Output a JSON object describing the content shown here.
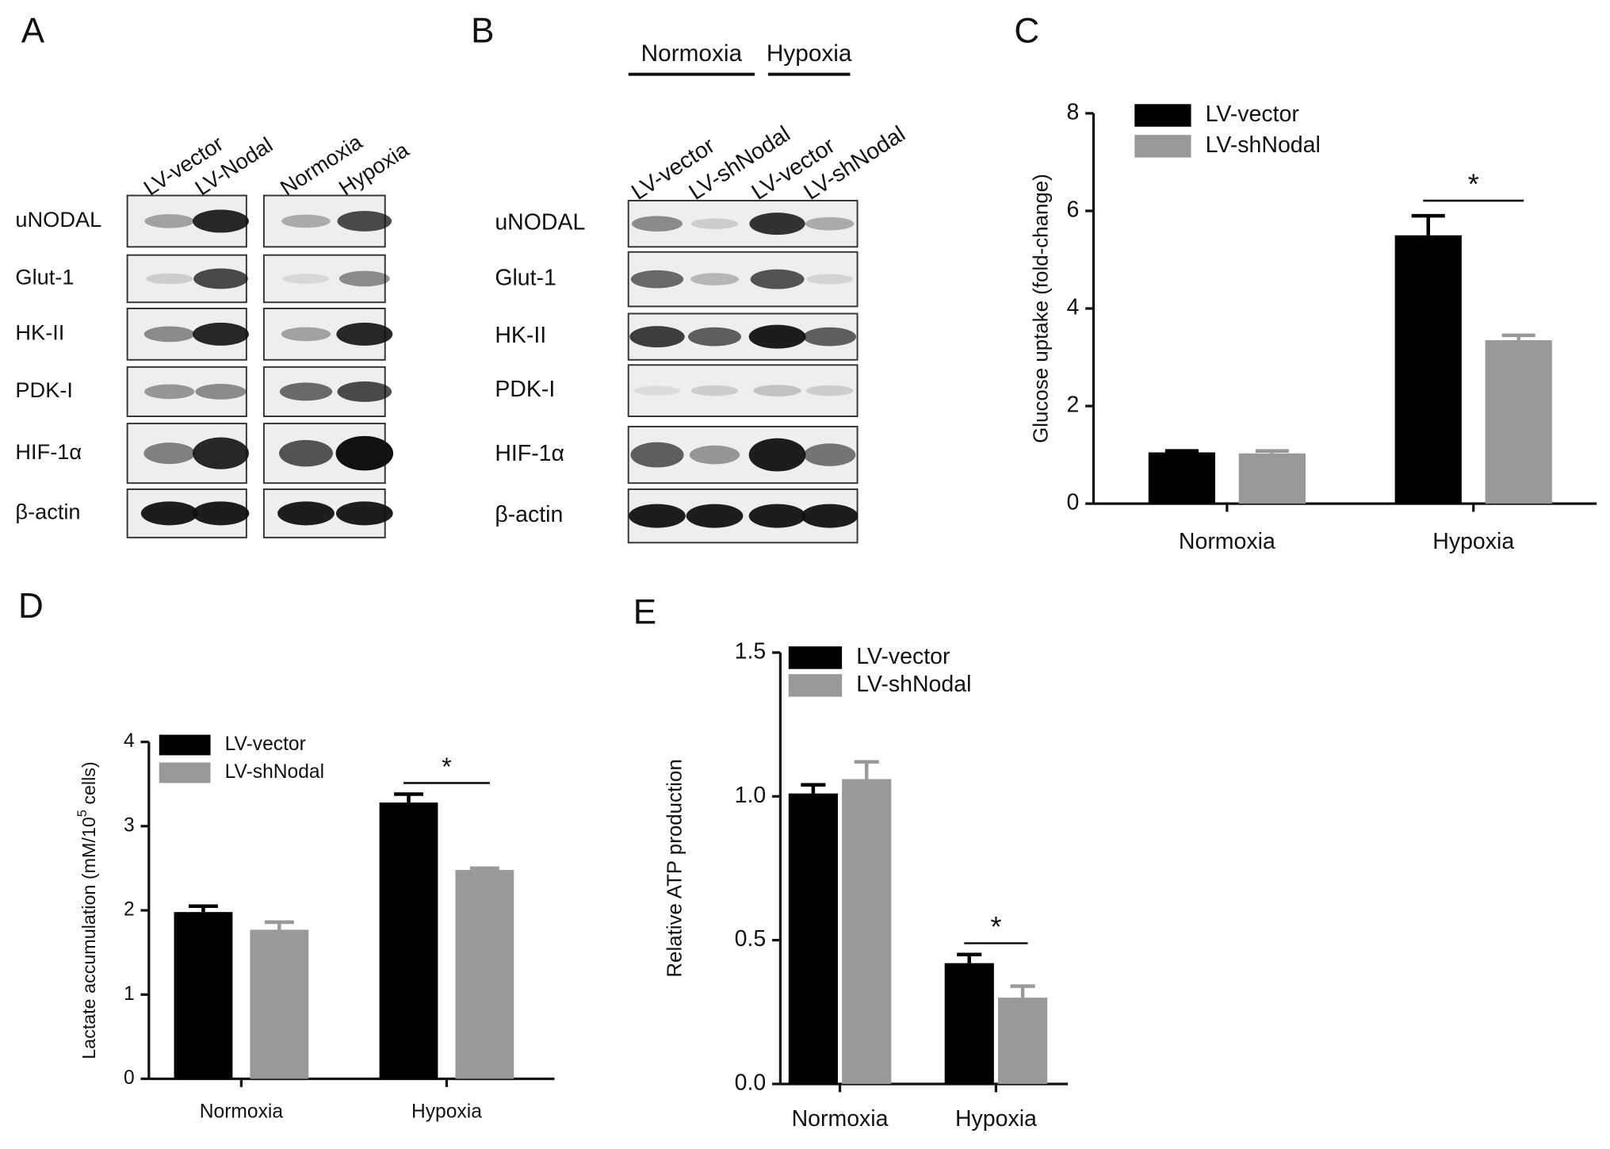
{
  "blots": [
    {
      "panel": "A",
      "lanes": [
        "LV-vector",
        "LV-Nodal",
        "Normoxia",
        "Hypoxia"
      ],
      "proteins": [
        "uNODAL",
        "Glut-1",
        "HK-II",
        "PDK-I",
        "HIF-1α",
        "β-actin"
      ]
    },
    {
      "panel": "B",
      "groups": [
        "Normoxia",
        "Hypoxia"
      ],
      "lanes": [
        "LV-vector",
        "LV-shNodal",
        "LV-vector",
        "LV-shNodal"
      ],
      "proteins": [
        "uNODAL",
        "Glut-1",
        "HK-II",
        "PDK-I",
        "HIF-1α",
        "β-actin"
      ]
    }
  ],
  "chart_data": [
    {
      "panel": "C",
      "type": "bar",
      "y_label": [
        "Glucose uptake (fold-change)"
      ],
      "categories": [
        "Normoxia",
        "Hypoxia"
      ],
      "series": [
        {
          "name": "LV-vector",
          "color": "#000000",
          "values": [
            1.05,
            5.5
          ],
          "errors": [
            0.03,
            0.4
          ]
        },
        {
          "name": "LV-shNodal",
          "color": "#999999",
          "values": [
            1.03,
            3.35
          ],
          "errors": [
            0.05,
            0.1
          ]
        }
      ],
      "ylim": [
        0,
        8
      ],
      "yticks": [
        0,
        2,
        4,
        6,
        8
      ],
      "significance": "*"
    },
    {
      "panel": "D",
      "type": "bar",
      "y_label": [
        "Lactate accumulation (mM/10",
        "5",
        " cells)"
      ],
      "categories": [
        "Normoxia",
        "Hypoxia"
      ],
      "series": [
        {
          "name": "LV-vector",
          "color": "#000000",
          "values": [
            1.98,
            3.28
          ],
          "errors": [
            0.07,
            0.1
          ]
        },
        {
          "name": "LV-shNodal",
          "color": "#999999",
          "values": [
            1.77,
            2.48
          ],
          "errors": [
            0.09,
            0.02
          ]
        }
      ],
      "ylim": [
        0,
        4
      ],
      "yticks": [
        0,
        1,
        2,
        3,
        4
      ],
      "significance": "*"
    },
    {
      "panel": "E",
      "type": "bar",
      "y_label": [
        "Relative ATP production"
      ],
      "categories": [
        "Normoxia",
        "Hypoxia"
      ],
      "series": [
        {
          "name": "LV-vector",
          "color": "#000000",
          "values": [
            1.01,
            0.42
          ],
          "errors": [
            0.03,
            0.03
          ]
        },
        {
          "name": "LV-shNodal",
          "color": "#999999",
          "values": [
            1.06,
            0.3
          ],
          "errors": [
            0.06,
            0.04
          ]
        }
      ],
      "ylim": [
        0,
        1.5
      ],
      "yticks": [
        {
          "value": 0,
          "label": "0.0"
        },
        {
          "value": 0.5,
          "label": "0.5"
        },
        {
          "value": 1,
          "label": "1.0"
        },
        {
          "value": 1.5,
          "label": "1.5"
        }
      ],
      "significance": "*"
    }
  ]
}
